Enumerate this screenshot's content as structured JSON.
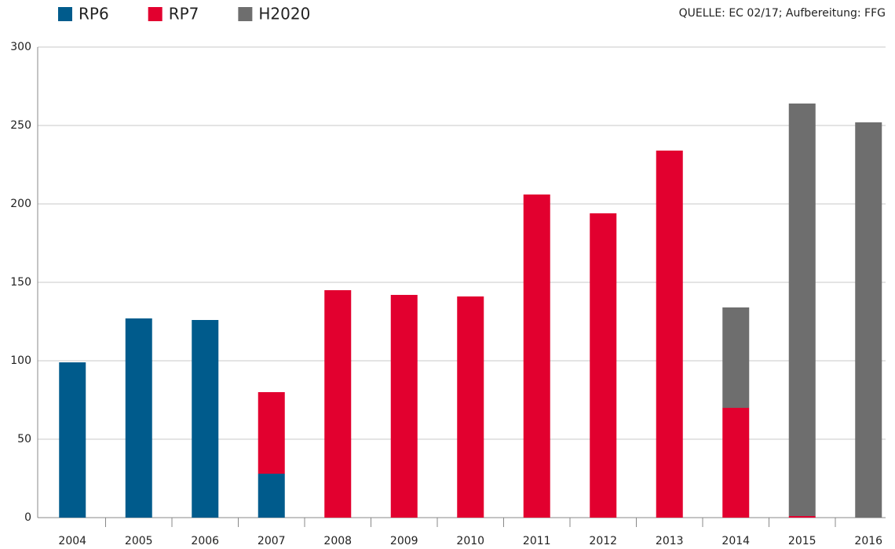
{
  "chart_data": {
    "type": "stacked_bar",
    "source": "QUELLE: EC 02/17; Aufbereitung: FFG",
    "categories": [
      "2004",
      "2005",
      "2006",
      "2007",
      "2008",
      "2009",
      "2010",
      "2011",
      "2012",
      "2013",
      "2014",
      "2015",
      "2016"
    ],
    "series": [
      {
        "name": "RP6",
        "color": "#005b8c",
        "values": [
          99,
          127,
          126,
          28,
          0,
          0,
          0,
          0,
          0,
          0,
          0,
          0,
          0
        ]
      },
      {
        "name": "RP7",
        "color": "#e2002f",
        "values": [
          0,
          0,
          0,
          52,
          145,
          142,
          141,
          206,
          194,
          234,
          70,
          1,
          0
        ]
      },
      {
        "name": "H2020",
        "color": "#6e6e6e",
        "values": [
          0,
          0,
          0,
          0,
          0,
          0,
          0,
          0,
          0,
          0,
          64,
          263,
          252
        ]
      }
    ],
    "ylim": [
      0,
      300
    ],
    "yticks": [
      0,
      50,
      100,
      150,
      200,
      250,
      300
    ],
    "grid": true,
    "legend": "top-left"
  }
}
